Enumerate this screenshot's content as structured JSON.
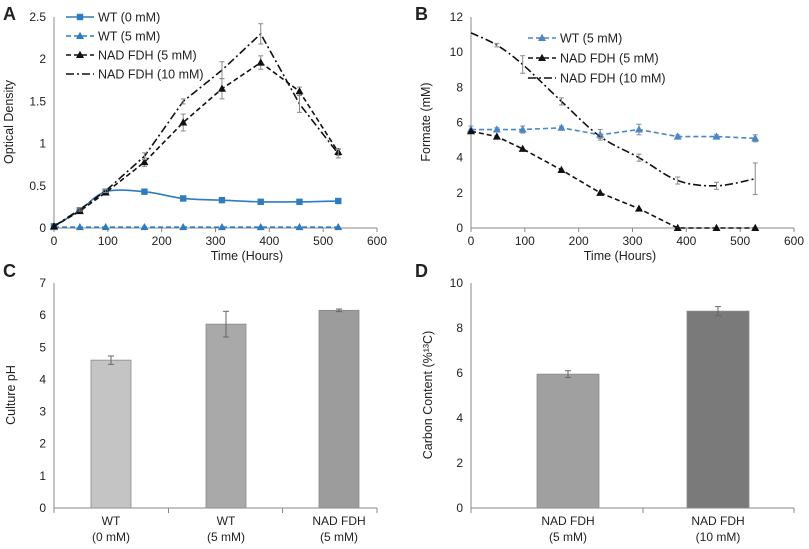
{
  "chart_data": [
    {
      "panel": "A",
      "type": "line",
      "xlabel": "Time (Hours)",
      "ylabel": "Optical Density",
      "xlim": [
        0,
        600
      ],
      "ylim": [
        0,
        2.5
      ],
      "xticks": [
        "0",
        "100",
        "200",
        "300",
        "400",
        "500",
        "600"
      ],
      "yticks": [
        "0",
        "0.5",
        "1",
        "1.5",
        "2",
        "2.5"
      ],
      "legend_position": "top-left",
      "series": [
        {
          "name": "WT (0 mM)",
          "color": "#2f7bbf",
          "style": "solid",
          "marker": "square",
          "smooth": true,
          "x": [
            0,
            48,
            96,
            168,
            240,
            312,
            384,
            456,
            528
          ],
          "y": [
            0.02,
            0.21,
            0.43,
            0.43,
            0.35,
            0.33,
            0.31,
            0.31,
            0.32
          ],
          "err": [
            0,
            0,
            0,
            0,
            0,
            0,
            0,
            0,
            0
          ]
        },
        {
          "name": "WT (5 mM)",
          "color": "#2f7bbf",
          "style": "dashed",
          "marker": "triangle",
          "x": [
            0,
            48,
            96,
            168,
            240,
            312,
            384,
            456,
            528
          ],
          "y": [
            0.01,
            0.01,
            0.01,
            0.01,
            0.01,
            0.01,
            0.01,
            0.01,
            0.01
          ],
          "err": [
            0,
            0,
            0,
            0,
            0,
            0,
            0,
            0,
            0
          ]
        },
        {
          "name": "NAD FDH (5 mM)",
          "color": "#111111",
          "style": "dashed",
          "marker": "triangle",
          "x": [
            0,
            48,
            96,
            168,
            240,
            312,
            384,
            456,
            528
          ],
          "y": [
            0.02,
            0.2,
            0.42,
            0.78,
            1.25,
            1.65,
            1.96,
            1.62,
            0.9
          ],
          "err": [
            0,
            0.02,
            0.02,
            0.05,
            0.1,
            0.12,
            0.08,
            0.05,
            0.04
          ]
        },
        {
          "name": "NAD FDH (10 mM)",
          "color": "#111111",
          "style": "dashdot",
          "marker": "none",
          "x": [
            0,
            48,
            96,
            168,
            240,
            312,
            384,
            456,
            528
          ],
          "y": [
            0.02,
            0.22,
            0.44,
            0.85,
            1.5,
            1.87,
            2.3,
            1.47,
            0.88
          ],
          "err": [
            0,
            0.02,
            0.02,
            0.04,
            0.03,
            0.1,
            0.12,
            0.1,
            0.05
          ]
        }
      ]
    },
    {
      "panel": "B",
      "type": "line",
      "xlabel": "Time (Hours)",
      "ylabel": "Formate (mM)",
      "xlim": [
        0,
        600
      ],
      "ylim": [
        0,
        12
      ],
      "xticks": [
        "0",
        "100",
        "200",
        "300",
        "400",
        "500",
        "600"
      ],
      "yticks": [
        "0",
        "2",
        "4",
        "6",
        "8",
        "10",
        "12"
      ],
      "legend_position": "top-right",
      "series": [
        {
          "name": "WT (5 mM)",
          "color": "#4a86c8",
          "style": "dashed",
          "marker": "triangle",
          "x": [
            0,
            48,
            96,
            168,
            240,
            312,
            384,
            456,
            528
          ],
          "y": [
            5.6,
            5.6,
            5.6,
            5.7,
            5.3,
            5.6,
            5.2,
            5.2,
            5.1
          ],
          "err": [
            0.2,
            0.1,
            0.2,
            0.1,
            0.3,
            0.3,
            0.1,
            0.1,
            0.2
          ]
        },
        {
          "name": "NAD FDH (5 mM)",
          "color": "#111111",
          "style": "dashed",
          "marker": "triangle",
          "x": [
            0,
            48,
            96,
            168,
            240,
            312,
            384,
            456,
            528
          ],
          "y": [
            5.5,
            5.2,
            4.5,
            3.3,
            2.0,
            1.1,
            0.0,
            0.0,
            0.0
          ],
          "err": [
            0,
            0,
            0,
            0,
            0,
            0,
            0,
            0,
            0
          ]
        },
        {
          "name": "NAD FDH (10 mM)",
          "color": "#111111",
          "style": "dashdot",
          "marker": "none",
          "smooth": true,
          "x": [
            0,
            48,
            96,
            168,
            240,
            312,
            384,
            456,
            528
          ],
          "y": [
            11.1,
            10.4,
            9.3,
            7.2,
            5.2,
            4.0,
            2.7,
            2.4,
            2.8
          ],
          "err": [
            0,
            0.1,
            0.5,
            0.2,
            0.1,
            0.2,
            0.2,
            0.2,
            0.9
          ]
        }
      ]
    },
    {
      "panel": "C",
      "type": "bar",
      "ylabel": "Culture pH",
      "ylim": [
        0,
        7
      ],
      "yticks": [
        "0",
        "1",
        "2",
        "3",
        "4",
        "5",
        "6",
        "7"
      ],
      "categories": [
        [
          "WT",
          "(0 mM)"
        ],
        [
          "WT",
          "(5 mM)"
        ],
        [
          "NAD FDH",
          "(5 mM)"
        ]
      ],
      "values": [
        4.6,
        5.72,
        6.15
      ],
      "err": [
        0.13,
        0.4,
        0.04
      ],
      "colors": [
        "#c4c4c4",
        "#a9a9a9",
        "#9c9c9c"
      ]
    },
    {
      "panel": "D",
      "type": "bar",
      "ylabel": "Carbon Content (%¹³C)",
      "ylim": [
        0,
        10
      ],
      "yticks": [
        "0",
        "2",
        "4",
        "6",
        "8",
        "10"
      ],
      "categories": [
        [
          "NAD FDH",
          "(5 mM)"
        ],
        [
          "NAD FDH",
          "(10 mM)"
        ]
      ],
      "values": [
        5.95,
        8.75
      ],
      "err": [
        0.15,
        0.2
      ],
      "colors": [
        "#a0a0a0",
        "#7a7a7a"
      ]
    }
  ]
}
